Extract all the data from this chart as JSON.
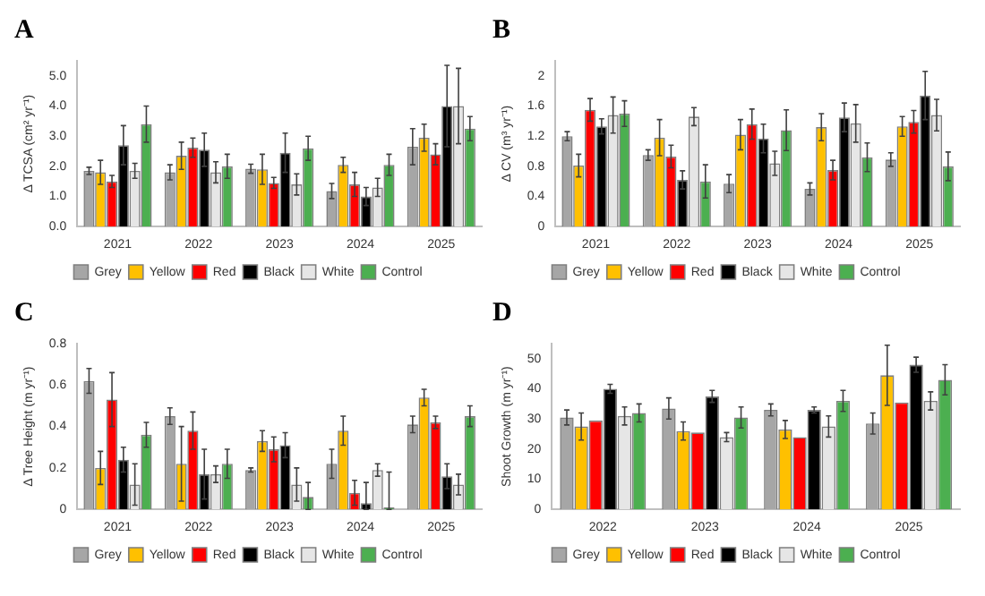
{
  "chart_data": [
    {
      "type": "bar",
      "title": "A",
      "ylabel": "Δ TCSA (cm² yr⁻¹)",
      "categories": [
        "2021",
        "2022",
        "2023",
        "2024",
        "2025"
      ],
      "ylim": [
        0,
        5.5
      ],
      "yticks": [
        {
          "value": 0,
          "label": "0.0"
        },
        {
          "value": 1,
          "label": "1.0"
        },
        {
          "value": 2,
          "label": "2.0"
        },
        {
          "value": 3,
          "label": "3.0"
        },
        {
          "value": 4,
          "label": "4.0"
        },
        {
          "value": 5,
          "label": "5.0"
        }
      ],
      "grid": false,
      "legend": "bottom",
      "series": [
        {
          "name": "Grey",
          "color": "#a6a6a6",
          "values": [
            1.85,
            1.8,
            1.92,
            1.18,
            2.65
          ],
          "errors": [
            0.12,
            0.25,
            0.15,
            0.25,
            0.6
          ]
        },
        {
          "name": "Yellow",
          "color": "#ffc000",
          "values": [
            1.8,
            2.35,
            1.9,
            2.05,
            2.95
          ],
          "errors": [
            0.4,
            0.45,
            0.5,
            0.25,
            0.45
          ]
        },
        {
          "name": "Red",
          "color": "#ff0000",
          "values": [
            1.5,
            2.62,
            1.45,
            1.4,
            2.4
          ],
          "errors": [
            0.2,
            0.32,
            0.18,
            0.4,
            0.35
          ]
        },
        {
          "name": "Black",
          "color": "#000000",
          "values": [
            2.7,
            2.55,
            2.45,
            1.0,
            4.0
          ],
          "errors": [
            0.65,
            0.55,
            0.65,
            0.3,
            1.35
          ]
        },
        {
          "name": "White",
          "color": "#e6e6e6",
          "values": [
            1.85,
            1.8,
            1.4,
            1.3,
            4.0
          ],
          "errors": [
            0.25,
            0.35,
            0.35,
            0.3,
            1.25
          ]
        },
        {
          "name": "Control",
          "color": "#4caf50",
          "values": [
            3.4,
            2.0,
            2.6,
            2.05,
            3.25
          ],
          "errors": [
            0.6,
            0.4,
            0.4,
            0.35,
            0.4
          ]
        }
      ]
    },
    {
      "type": "bar",
      "title": "B",
      "ylabel": "Δ CV (m³ yr⁻¹)",
      "categories": [
        "2021",
        "2022",
        "2023",
        "2024",
        "2025"
      ],
      "ylim": [
        0,
        2.2
      ],
      "yticks": [
        0,
        0.4,
        0.8,
        1.2,
        1.6,
        2
      ],
      "grid": false,
      "legend": "bottom",
      "series": [
        {
          "name": "Grey",
          "color": "#a6a6a6",
          "values": [
            1.2,
            0.95,
            0.57,
            0.5,
            0.89
          ],
          "errors": [
            0.06,
            0.07,
            0.12,
            0.08,
            0.09
          ]
        },
        {
          "name": "Yellow",
          "color": "#ffc000",
          "values": [
            0.81,
            1.18,
            1.22,
            1.32,
            1.33
          ],
          "errors": [
            0.15,
            0.24,
            0.2,
            0.18,
            0.13
          ]
        },
        {
          "name": "Red",
          "color": "#ff0000",
          "values": [
            1.55,
            0.93,
            1.36,
            0.75,
            1.39
          ],
          "errors": [
            0.15,
            0.15,
            0.2,
            0.13,
            0.15
          ]
        },
        {
          "name": "Black",
          "color": "#000000",
          "values": [
            1.33,
            0.62,
            1.17,
            1.45,
            1.74
          ],
          "errors": [
            0.1,
            0.12,
            0.19,
            0.19,
            0.32
          ]
        },
        {
          "name": "White",
          "color": "#e6e6e6",
          "values": [
            1.48,
            1.46,
            0.84,
            1.37,
            1.48
          ],
          "errors": [
            0.24,
            0.12,
            0.16,
            0.25,
            0.21
          ]
        },
        {
          "name": "Control",
          "color": "#4caf50",
          "values": [
            1.5,
            0.6,
            1.28,
            0.92,
            0.8
          ],
          "errors": [
            0.17,
            0.22,
            0.27,
            0.19,
            0.19
          ]
        }
      ]
    },
    {
      "type": "bar",
      "title": "C",
      "ylabel": "Δ Tree Height (m yr⁻¹)",
      "categories": [
        "2021",
        "2022",
        "2023",
        "2024",
        "2025"
      ],
      "ylim": [
        0,
        0.8
      ],
      "yticks": [
        0,
        0.2,
        0.4,
        0.6,
        0.8
      ],
      "grid": false,
      "legend": "bottom",
      "series": [
        {
          "name": "Grey",
          "color": "#a6a6a6",
          "values": [
            0.62,
            0.45,
            0.19,
            0.22,
            0.41
          ],
          "errors": [
            0.06,
            0.04,
            0.01,
            0.07,
            0.04
          ]
        },
        {
          "name": "Yellow",
          "color": "#ffc000",
          "values": [
            0.2,
            0.22,
            0.33,
            0.38,
            0.54
          ],
          "errors": [
            0.08,
            0.18,
            0.05,
            0.07,
            0.04
          ]
        },
        {
          "name": "Red",
          "color": "#ff0000",
          "values": [
            0.53,
            0.38,
            0.29,
            0.08,
            0.42
          ],
          "errors": [
            0.13,
            0.09,
            0.06,
            0.06,
            0.03
          ]
        },
        {
          "name": "Black",
          "color": "#000000",
          "values": [
            0.24,
            0.17,
            0.31,
            0.03,
            0.16
          ],
          "errors": [
            0.06,
            0.12,
            0.06,
            [
              0,
              0.13
            ],
            0.06
          ]
        },
        {
          "name": "White",
          "color": "#e6e6e6",
          "values": [
            0.12,
            0.17,
            0.12,
            0.19,
            0.12
          ],
          "errors": [
            0.1,
            0.04,
            0.08,
            0.03,
            0.05
          ]
        },
        {
          "name": "Control",
          "color": "#4caf50",
          "values": [
            0.36,
            0.22,
            0.06,
            0.01,
            0.45
          ],
          "errors": [
            0.06,
            0.07,
            [
              0,
              0.13
            ],
            [
              0,
              0.18
            ],
            0.05
          ]
        }
      ]
    },
    {
      "type": "bar",
      "title": "D",
      "ylabel": "Shoot Growth (m yr⁻¹)",
      "categories": [
        "2022",
        "2023",
        "2024",
        "2025"
      ],
      "ylim": [
        0,
        55
      ],
      "yticks": [
        0,
        10,
        20,
        30,
        40,
        50
      ],
      "grid": false,
      "legend": "bottom",
      "series": [
        {
          "name": "Grey",
          "color": "#a6a6a6",
          "values": [
            30.5,
            33.5,
            33,
            28.5
          ],
          "errors": [
            2.5,
            3.5,
            2,
            3.5
          ]
        },
        {
          "name": "Yellow",
          "color": "#ffc000",
          "values": [
            27.5,
            26,
            26.5,
            44.5
          ],
          "errors": [
            4.5,
            3,
            3,
            10
          ]
        },
        {
          "name": "Red",
          "color": "#ff0000",
          "values": [
            29.5,
            25.5,
            24,
            35.5
          ],
          "errors": [
            null,
            null,
            null,
            null
          ]
        },
        {
          "name": "Black",
          "color": "#000000",
          "values": [
            40,
            37.5,
            33,
            48
          ],
          "errors": [
            1.5,
            2,
            1,
            2.5
          ]
        },
        {
          "name": "White",
          "color": "#e6e6e6",
          "values": [
            31,
            24,
            27.5,
            36
          ],
          "errors": [
            3,
            1.5,
            3.5,
            3
          ]
        },
        {
          "name": "Control",
          "color": "#4caf50",
          "values": [
            32,
            30.5,
            36,
            43
          ],
          "errors": [
            3,
            3.5,
            3.5,
            5
          ]
        }
      ]
    }
  ]
}
